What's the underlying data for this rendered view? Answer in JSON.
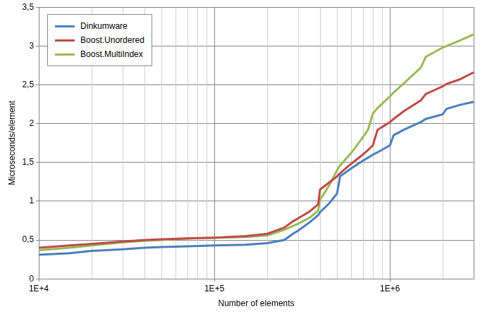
{
  "chart_data": {
    "type": "line",
    "x_label": "Number of elements",
    "y_label": "Microseconds/element",
    "log": "x",
    "grid": true,
    "legend": "upper left",
    "xlim": [
      10000,
      3000000
    ],
    "xticks": [
      {
        "value": 10000,
        "label": "1E+4"
      },
      {
        "value": 100000,
        "label": "1E+5"
      },
      {
        "value": 1000000,
        "label": "1E+6"
      }
    ],
    "ylim": [
      0,
      3.5
    ],
    "yticks": [
      0,
      {
        "value": 0.5,
        "label": "0,5"
      },
      1,
      {
        "value": 1.5,
        "label": "1,5"
      },
      2,
      {
        "value": 2.5,
        "label": "2,5"
      },
      3,
      {
        "value": 3.5,
        "label": "3,5"
      }
    ],
    "x": [
      10000,
      15000,
      20000,
      30000,
      40000,
      50000,
      70000,
      100000,
      150000,
      200000,
      250000,
      280000,
      300000,
      350000,
      390000,
      400000,
      450000,
      500000,
      520000,
      600000,
      700000,
      750000,
      800000,
      850000,
      1000000,
      1050000,
      1200000,
      1500000,
      1600000,
      2000000,
      2100000,
      2500000,
      3000000
    ],
    "series": [
      {
        "name": "Dinkumware",
        "color": "#4a7ebb",
        "values": [
          0.31,
          0.33,
          0.36,
          0.38,
          0.4,
          0.41,
          0.42,
          0.43,
          0.44,
          0.46,
          0.5,
          0.58,
          0.62,
          0.73,
          0.82,
          0.86,
          0.97,
          1.1,
          1.32,
          1.42,
          1.52,
          1.56,
          1.6,
          1.63,
          1.72,
          1.85,
          1.92,
          2.02,
          2.06,
          2.12,
          2.19,
          2.24,
          2.28
        ]
      },
      {
        "name": "Boost.Unordered",
        "color": "#be4b48",
        "values": [
          0.4,
          0.43,
          0.45,
          0.48,
          0.5,
          0.51,
          0.52,
          0.53,
          0.55,
          0.58,
          0.66,
          0.74,
          0.78,
          0.87,
          0.96,
          1.15,
          1.24,
          1.32,
          1.36,
          1.48,
          1.6,
          1.66,
          1.72,
          1.92,
          2.02,
          2.06,
          2.16,
          2.3,
          2.38,
          2.48,
          2.51,
          2.57,
          2.66
        ]
      },
      {
        "name": "Boost.MultiIndex",
        "color": "#98b954",
        "values": [
          0.37,
          0.4,
          0.43,
          0.47,
          0.49,
          0.5,
          0.52,
          0.53,
          0.54,
          0.56,
          0.63,
          0.68,
          0.71,
          0.79,
          0.88,
          1.02,
          1.2,
          1.4,
          1.46,
          1.62,
          1.82,
          1.92,
          2.13,
          2.2,
          2.35,
          2.4,
          2.52,
          2.72,
          2.86,
          2.98,
          3.0,
          3.07,
          3.15
        ]
      }
    ]
  }
}
